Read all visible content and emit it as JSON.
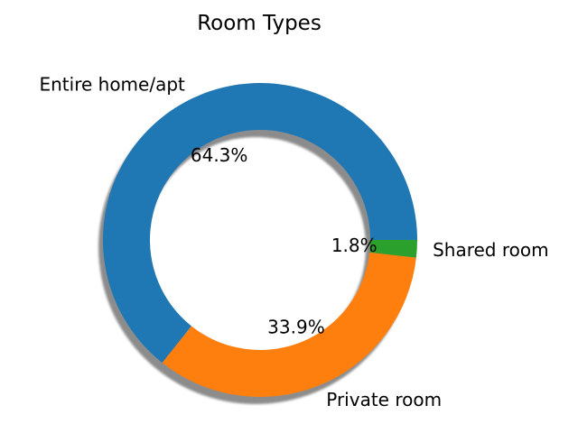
{
  "chart_data": {
    "type": "pie",
    "style": "donut",
    "title": "Room Types",
    "categories": [
      "Entire home/apt",
      "Private room",
      "Shared room"
    ],
    "values": [
      64.3,
      33.9,
      1.8
    ],
    "value_labels": [
      "64.3%",
      "33.9%",
      "1.8%"
    ],
    "colors": [
      "#1f77b4",
      "#ff7f0e",
      "#2ca02c"
    ],
    "start_angle_deg": 0,
    "direction": "counterclockwise",
    "shadow": true,
    "legend": "none"
  }
}
